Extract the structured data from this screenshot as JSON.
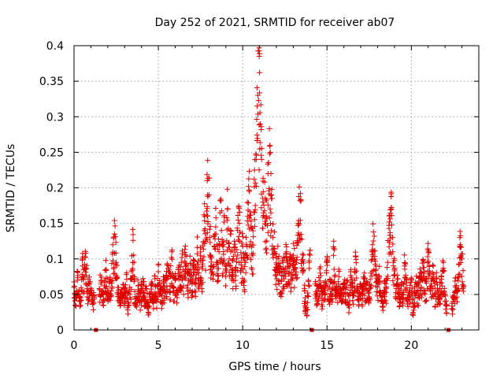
{
  "chart_data": {
    "type": "scatter",
    "title": "Day 252 of 2021, SRMTID for receiver ab07",
    "xlabel": "GPS time / hours",
    "ylabel": "SRMTID / TECUs",
    "xlim": [
      0,
      24
    ],
    "ylim": [
      0,
      0.4
    ],
    "xticks": [
      0,
      5,
      10,
      15,
      20
    ],
    "xtick_labels": [
      "0",
      "5",
      "10",
      "15",
      "20"
    ],
    "yticks": [
      0,
      0.05,
      0.1,
      0.15,
      0.2,
      0.25,
      0.3,
      0.35,
      0.4
    ],
    "ytick_labels": [
      "0",
      "0.05",
      "0.1",
      "0.15",
      "0.2",
      "0.25",
      "0.3",
      "0.35",
      "0.4"
    ],
    "grid": true,
    "marker": "+",
    "series_color": "#e00000",
    "data_gaps_at_hours": [
      1.3,
      14.1,
      22.2
    ],
    "series": [
      {
        "name": "SRMTID",
        "points": [
          [
            0.0,
            0.06
          ],
          [
            0.1,
            0.048
          ],
          [
            0.2,
            0.07
          ],
          [
            0.3,
            0.055
          ],
          [
            0.4,
            0.042
          ],
          [
            0.5,
            0.09
          ],
          [
            0.6,
            0.075
          ],
          [
            0.7,
            0.108
          ],
          [
            0.8,
            0.058
          ],
          [
            0.9,
            0.066
          ],
          [
            1.0,
            0.052
          ],
          [
            1.1,
            0.04
          ],
          [
            1.2,
            0.046
          ],
          [
            1.5,
            0.058
          ],
          [
            1.6,
            0.07
          ],
          [
            1.7,
            0.05
          ],
          [
            1.8,
            0.062
          ],
          [
            1.9,
            0.085
          ],
          [
            2.0,
            0.044
          ],
          [
            2.1,
            0.068
          ],
          [
            2.2,
            0.055
          ],
          [
            2.3,
            0.12
          ],
          [
            2.4,
            0.135
          ],
          [
            2.5,
            0.095
          ],
          [
            2.6,
            0.06
          ],
          [
            2.7,
            0.04
          ],
          [
            2.8,
            0.052
          ],
          [
            2.9,
            0.064
          ],
          [
            3.0,
            0.048
          ],
          [
            3.1,
            0.078
          ],
          [
            3.2,
            0.035
          ],
          [
            3.3,
            0.06
          ],
          [
            3.4,
            0.072
          ],
          [
            3.5,
            0.126
          ],
          [
            3.6,
            0.054
          ],
          [
            3.7,
            0.044
          ],
          [
            3.8,
            0.062
          ],
          [
            3.9,
            0.038
          ],
          [
            4.0,
            0.056
          ],
          [
            4.1,
            0.068
          ],
          [
            4.2,
            0.046
          ],
          [
            4.3,
            0.058
          ],
          [
            4.4,
            0.025
          ],
          [
            4.5,
            0.052
          ],
          [
            4.6,
            0.064
          ],
          [
            4.7,
            0.044
          ],
          [
            4.8,
            0.072
          ],
          [
            4.9,
            0.04
          ],
          [
            5.0,
            0.082
          ],
          [
            5.1,
            0.058
          ],
          [
            5.2,
            0.048
          ],
          [
            5.3,
            0.066
          ],
          [
            5.4,
            0.052
          ],
          [
            5.5,
            0.075
          ],
          [
            5.6,
            0.09
          ],
          [
            5.7,
            0.062
          ],
          [
            5.8,
            0.11
          ],
          [
            5.9,
            0.06
          ],
          [
            6.0,
            0.07
          ],
          [
            6.1,
            0.055
          ],
          [
            6.2,
            0.085
          ],
          [
            6.3,
            0.075
          ],
          [
            6.4,
            0.102
          ],
          [
            6.5,
            0.062
          ],
          [
            6.6,
            0.118
          ],
          [
            6.7,
            0.08
          ],
          [
            6.8,
            0.07
          ],
          [
            6.9,
            0.094
          ],
          [
            7.0,
            0.065
          ],
          [
            7.1,
            0.088
          ],
          [
            7.2,
            0.072
          ],
          [
            7.3,
            0.116
          ],
          [
            7.4,
            0.08
          ],
          [
            7.5,
            0.098
          ],
          [
            7.6,
            0.086
          ],
          [
            7.7,
            0.162
          ],
          [
            7.8,
            0.125
          ],
          [
            7.9,
            0.21
          ],
          [
            8.0,
            0.19
          ],
          [
            8.1,
            0.105
          ],
          [
            8.2,
            0.082
          ],
          [
            8.3,
            0.132
          ],
          [
            8.4,
            0.145
          ],
          [
            8.5,
            0.095
          ],
          [
            8.6,
            0.11
          ],
          [
            8.7,
            0.184
          ],
          [
            8.8,
            0.12
          ],
          [
            8.9,
            0.152
          ],
          [
            9.0,
            0.09
          ],
          [
            9.1,
            0.17
          ],
          [
            9.2,
            0.1
          ],
          [
            9.3,
            0.135
          ],
          [
            9.4,
            0.078
          ],
          [
            9.5,
            0.125
          ],
          [
            9.6,
            0.088
          ],
          [
            9.7,
            0.14
          ],
          [
            9.8,
            0.15
          ],
          [
            9.9,
            0.095
          ],
          [
            10.0,
            0.118
          ],
          [
            10.1,
            0.07
          ],
          [
            10.2,
            0.13
          ],
          [
            10.3,
            0.16
          ],
          [
            10.4,
            0.195
          ],
          [
            10.5,
            0.145
          ],
          [
            10.6,
            0.105
          ],
          [
            10.7,
            0.225
          ],
          [
            10.8,
            0.24
          ],
          [
            10.9,
            0.33
          ],
          [
            11.0,
            0.362
          ],
          [
            11.1,
            0.282
          ],
          [
            11.2,
            0.18
          ],
          [
            11.3,
            0.208
          ],
          [
            11.4,
            0.16
          ],
          [
            11.5,
            0.22
          ],
          [
            11.6,
            0.248
          ],
          [
            11.7,
            0.19
          ],
          [
            11.8,
            0.13
          ],
          [
            11.9,
            0.11
          ],
          [
            12.0,
            0.085
          ],
          [
            12.1,
            0.1
          ],
          [
            12.2,
            0.08
          ],
          [
            12.3,
            0.07
          ],
          [
            12.4,
            0.095
          ],
          [
            12.5,
            0.082
          ],
          [
            12.6,
            0.11
          ],
          [
            12.7,
            0.068
          ],
          [
            12.8,
            0.09
          ],
          [
            12.9,
            0.076
          ],
          [
            13.0,
            0.105
          ],
          [
            13.1,
            0.088
          ],
          [
            13.2,
            0.095
          ],
          [
            13.3,
            0.15
          ],
          [
            13.4,
            0.182
          ],
          [
            13.5,
            0.128
          ],
          [
            13.6,
            0.085
          ],
          [
            13.7,
            0.04
          ],
          [
            13.8,
            0.02
          ],
          [
            13.9,
            0.07
          ],
          [
            14.0,
            0.112
          ],
          [
            14.3,
            0.065
          ],
          [
            14.4,
            0.05
          ],
          [
            14.5,
            0.058
          ],
          [
            14.6,
            0.08
          ],
          [
            14.7,
            0.045
          ],
          [
            14.8,
            0.06
          ],
          [
            14.9,
            0.052
          ],
          [
            15.0,
            0.095
          ],
          [
            15.1,
            0.04
          ],
          [
            15.2,
            0.068
          ],
          [
            15.3,
            0.055
          ],
          [
            15.4,
            0.115
          ],
          [
            15.5,
            0.06
          ],
          [
            15.6,
            0.048
          ],
          [
            15.7,
            0.075
          ],
          [
            15.8,
            0.058
          ],
          [
            15.9,
            0.042
          ],
          [
            16.0,
            0.065
          ],
          [
            16.1,
            0.052
          ],
          [
            16.2,
            0.07
          ],
          [
            16.3,
            0.035
          ],
          [
            16.4,
            0.082
          ],
          [
            16.5,
            0.06
          ],
          [
            16.6,
            0.048
          ],
          [
            16.7,
            0.104
          ],
          [
            16.8,
            0.056
          ],
          [
            16.9,
            0.042
          ],
          [
            17.0,
            0.064
          ],
          [
            17.1,
            0.05
          ],
          [
            17.2,
            0.072
          ],
          [
            17.3,
            0.058
          ],
          [
            17.4,
            0.066
          ],
          [
            17.5,
            0.045
          ],
          [
            17.6,
            0.08
          ],
          [
            17.7,
            0.12
          ],
          [
            17.8,
            0.132
          ],
          [
            17.9,
            0.09
          ],
          [
            18.0,
            0.06
          ],
          [
            18.1,
            0.075
          ],
          [
            18.2,
            0.052
          ],
          [
            18.3,
            0.04
          ],
          [
            18.4,
            0.068
          ],
          [
            18.5,
            0.058
          ],
          [
            18.6,
            0.095
          ],
          [
            18.7,
            0.152
          ],
          [
            18.8,
            0.172
          ],
          [
            18.9,
            0.11
          ],
          [
            19.0,
            0.085
          ],
          [
            19.1,
            0.058
          ],
          [
            19.2,
            0.072
          ],
          [
            19.3,
            0.044
          ],
          [
            19.4,
            0.062
          ],
          [
            19.5,
            0.05
          ],
          [
            19.6,
            0.09
          ],
          [
            19.7,
            0.066
          ],
          [
            19.8,
            0.04
          ],
          [
            19.9,
            0.056
          ],
          [
            20.0,
            0.07
          ],
          [
            20.1,
            0.024
          ],
          [
            20.2,
            0.052
          ],
          [
            20.3,
            0.064
          ],
          [
            20.4,
            0.048
          ],
          [
            20.5,
            0.076
          ],
          [
            20.6,
            0.06
          ],
          [
            20.7,
            0.098
          ],
          [
            20.8,
            0.055
          ],
          [
            20.9,
            0.066
          ],
          [
            21.0,
            0.112
          ],
          [
            21.1,
            0.08
          ],
          [
            21.2,
            0.062
          ],
          [
            21.3,
            0.09
          ],
          [
            21.4,
            0.05
          ],
          [
            21.5,
            0.072
          ],
          [
            21.6,
            0.044
          ],
          [
            21.7,
            0.058
          ],
          [
            21.8,
            0.066
          ],
          [
            21.9,
            0.095
          ],
          [
            22.0,
            0.05
          ],
          [
            22.1,
            0.035
          ],
          [
            22.4,
            0.03
          ],
          [
            22.5,
            0.048
          ],
          [
            22.6,
            0.062
          ],
          [
            22.7,
            0.055
          ],
          [
            22.8,
            0.078
          ],
          [
            22.9,
            0.12
          ],
          [
            23.0,
            0.1
          ],
          [
            23.1,
            0.062
          ]
        ]
      }
    ]
  }
}
